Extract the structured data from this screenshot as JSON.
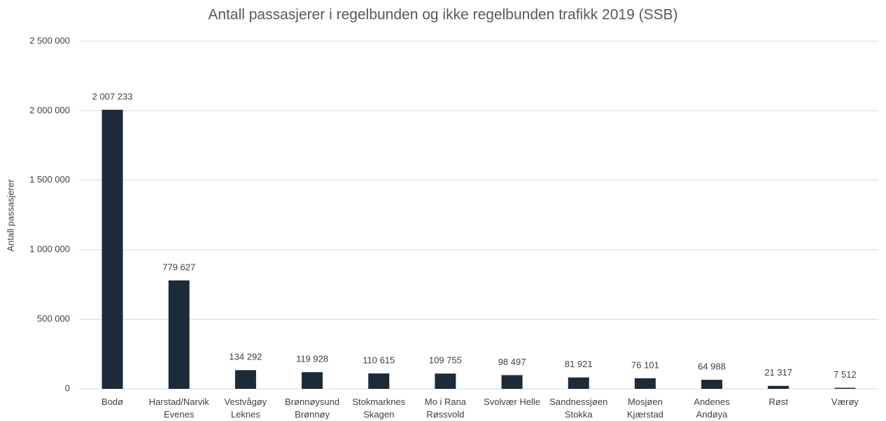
{
  "chart_data": {
    "type": "bar",
    "title": "Antall passasjerer i regelbunden og ikke regelbunden trafikk 2019 (SSB)",
    "y_label": "Antall passasjerer",
    "categories": [
      "Bodø",
      "Harstad/Narvik\nEvenes",
      "Vestvågøy\nLeknes",
      "Brønnøysund\nBrønnøy",
      "Stokmarknes\nSkagen",
      "Mo i Rana\nRøssvold",
      "Svolvær Helle",
      "Sandnessjøen\nStokka",
      "Mosjøen\nKjærstad",
      "Andenes\nAndøya",
      "Røst",
      "Værøy"
    ],
    "values": [
      2007233,
      779627,
      134292,
      119928,
      110615,
      109755,
      98497,
      81921,
      76101,
      64988,
      21317,
      7512
    ],
    "value_labels": [
      "2 007 233",
      "779 627",
      "134 292",
      "119 928",
      "110 615",
      "109 755",
      "98 497",
      "81 921",
      "76 101",
      "64 988",
      "21 317",
      "7 512"
    ],
    "color": "#1c2b3a",
    "ylim": [
      0,
      2500000
    ],
    "yticks": [
      0,
      {
        "value": 500000,
        "label": "500 000"
      },
      {
        "value": 1000000,
        "label": "1 000 000"
      },
      {
        "value": 1500000,
        "label": "1 500 000"
      },
      {
        "value": 2000000,
        "label": "2 000 000"
      },
      {
        "value": 2500000,
        "label": "2 500 000"
      }
    ],
    "grid": true
  }
}
